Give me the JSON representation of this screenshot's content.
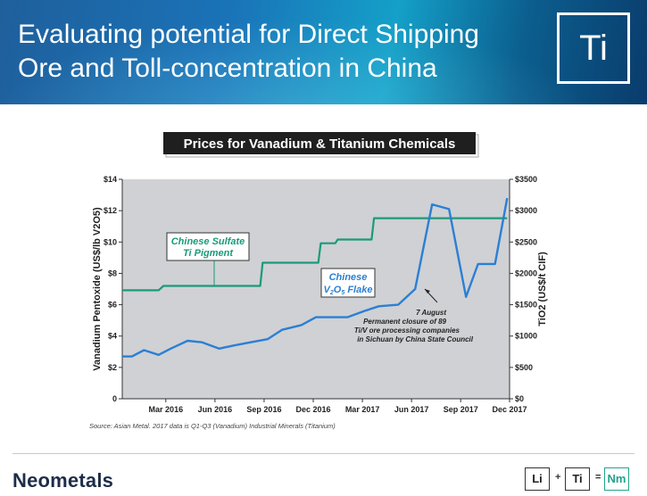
{
  "header": {
    "title_line1": "Evaluating potential for Direct Shipping",
    "title_line2": "Ore and Toll-concentration in China",
    "element_symbol": "Ti",
    "accent": "#1a73b8"
  },
  "chart_data": {
    "type": "line",
    "title": "Prices for Vanadium & Titanium Chemicals",
    "ylabel_left": "Vanadium Pentoxide (US$/lb V2O5)",
    "ylabel_right": "TiO2 (US$/t CIF)",
    "ylim_left": [
      0,
      14
    ],
    "ylim_right": [
      0,
      3500
    ],
    "y_ticks_left": [
      "0",
      "$2",
      "$4",
      "$6",
      "$8",
      "$10",
      "$12",
      "$14"
    ],
    "y_ticks_right": [
      "$0",
      "$500",
      "$1000",
      "$1500",
      "$2000",
      "$2500",
      "$3000",
      "$3500"
    ],
    "x_ticks": [
      "Mar 2016",
      "Jun 2016",
      "Sep 2016",
      "Dec 2016",
      "Mar 2017",
      "Jun 2017",
      "Sep 2017",
      "Dec 2017"
    ],
    "series": [
      {
        "name": "Chinese V2O5 Flake",
        "axis": "left",
        "color": "#2b7fd4",
        "points": [
          [
            0.0,
            2.7
          ],
          [
            0.4,
            2.7
          ],
          [
            0.9,
            3.1
          ],
          [
            1.5,
            2.8
          ],
          [
            2.0,
            3.2
          ],
          [
            2.7,
            3.7
          ],
          [
            3.3,
            3.6
          ],
          [
            4.0,
            3.2
          ],
          [
            4.6,
            3.4
          ],
          [
            5.3,
            3.6
          ],
          [
            6.0,
            3.8
          ],
          [
            6.6,
            4.4
          ],
          [
            7.4,
            4.7
          ],
          [
            8.0,
            5.2
          ],
          [
            8.7,
            5.2
          ],
          [
            9.3,
            5.2
          ],
          [
            10.0,
            5.6
          ],
          [
            10.6,
            5.9
          ],
          [
            11.4,
            6.0
          ],
          [
            12.1,
            7.0
          ],
          [
            12.8,
            12.4
          ],
          [
            13.5,
            12.1
          ],
          [
            14.2,
            6.5
          ],
          [
            14.7,
            8.6
          ],
          [
            15.4,
            8.6
          ],
          [
            15.9,
            12.8
          ]
        ]
      },
      {
        "name": "Chinese Sulfate Ti Pigment",
        "axis": "right",
        "color": "#1a9a7a",
        "points": [
          [
            0.0,
            1730
          ],
          [
            1.5,
            1730
          ],
          [
            1.7,
            1800
          ],
          [
            5.7,
            1800
          ],
          [
            5.8,
            2170
          ],
          [
            8.1,
            2170
          ],
          [
            8.2,
            2480
          ],
          [
            8.8,
            2480
          ],
          [
            8.9,
            2540
          ],
          [
            10.3,
            2540
          ],
          [
            10.4,
            2880
          ],
          [
            15.9,
            2880
          ]
        ]
      }
    ],
    "annotations": {
      "ti_label_line1": "Chinese Sulfate",
      "ti_label_line2": "Ti Pigment",
      "v_label_line1": "Chinese",
      "v_label_line2_a": "V",
      "v_label_line2_sub": "2",
      "v_label_line2_b": "O",
      "v_label_line2_sub2": "5",
      "v_label_line2_c": " Flake",
      "note_line1": "7 August",
      "note_line2": "Permanent closure of 89",
      "note_line3": "Ti/V ore processing companies",
      "note_line4": "in Sichuan by China State Council"
    },
    "source": "Source: Asian Metal. 2017 data is Q1-Q3 (Vanadium) Industrial Minerals (Titanium)",
    "grid": false
  },
  "footer": {
    "brand": "Neometals",
    "formula_a": "Li",
    "formula_plus": "+",
    "formula_b": "Ti",
    "formula_eq": "=",
    "formula_c": "Nm",
    "formula_c_color": "#22a38a"
  }
}
